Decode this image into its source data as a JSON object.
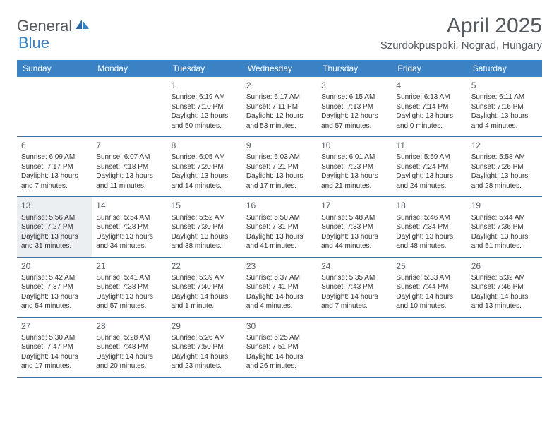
{
  "logo": {
    "text1": "General",
    "text2": "Blue"
  },
  "title": "April 2025",
  "location": "Szurdokpuspoki, Nograd, Hungary",
  "colors": {
    "header_bg": "#3b82c4",
    "header_text": "#ffffff",
    "border": "#3b6fa0",
    "logo_gray": "#555a5f",
    "logo_blue": "#3b82c4",
    "highlight_bg": "#eceff2",
    "body_text": "#333333"
  },
  "daysOfWeek": [
    "Sunday",
    "Monday",
    "Tuesday",
    "Wednesday",
    "Thursday",
    "Friday",
    "Saturday"
  ],
  "weeks": [
    [
      {
        "empty": true
      },
      {
        "empty": true
      },
      {
        "num": "1",
        "sunrise": "Sunrise: 6:19 AM",
        "sunset": "Sunset: 7:10 PM",
        "daylight": "Daylight: 12 hours and 50 minutes."
      },
      {
        "num": "2",
        "sunrise": "Sunrise: 6:17 AM",
        "sunset": "Sunset: 7:11 PM",
        "daylight": "Daylight: 12 hours and 53 minutes."
      },
      {
        "num": "3",
        "sunrise": "Sunrise: 6:15 AM",
        "sunset": "Sunset: 7:13 PM",
        "daylight": "Daylight: 12 hours and 57 minutes."
      },
      {
        "num": "4",
        "sunrise": "Sunrise: 6:13 AM",
        "sunset": "Sunset: 7:14 PM",
        "daylight": "Daylight: 13 hours and 0 minutes."
      },
      {
        "num": "5",
        "sunrise": "Sunrise: 6:11 AM",
        "sunset": "Sunset: 7:16 PM",
        "daylight": "Daylight: 13 hours and 4 minutes."
      }
    ],
    [
      {
        "num": "6",
        "sunrise": "Sunrise: 6:09 AM",
        "sunset": "Sunset: 7:17 PM",
        "daylight": "Daylight: 13 hours and 7 minutes."
      },
      {
        "num": "7",
        "sunrise": "Sunrise: 6:07 AM",
        "sunset": "Sunset: 7:18 PM",
        "daylight": "Daylight: 13 hours and 11 minutes."
      },
      {
        "num": "8",
        "sunrise": "Sunrise: 6:05 AM",
        "sunset": "Sunset: 7:20 PM",
        "daylight": "Daylight: 13 hours and 14 minutes."
      },
      {
        "num": "9",
        "sunrise": "Sunrise: 6:03 AM",
        "sunset": "Sunset: 7:21 PM",
        "daylight": "Daylight: 13 hours and 17 minutes."
      },
      {
        "num": "10",
        "sunrise": "Sunrise: 6:01 AM",
        "sunset": "Sunset: 7:23 PM",
        "daylight": "Daylight: 13 hours and 21 minutes."
      },
      {
        "num": "11",
        "sunrise": "Sunrise: 5:59 AM",
        "sunset": "Sunset: 7:24 PM",
        "daylight": "Daylight: 13 hours and 24 minutes."
      },
      {
        "num": "12",
        "sunrise": "Sunrise: 5:58 AM",
        "sunset": "Sunset: 7:26 PM",
        "daylight": "Daylight: 13 hours and 28 minutes."
      }
    ],
    [
      {
        "num": "13",
        "sunrise": "Sunrise: 5:56 AM",
        "sunset": "Sunset: 7:27 PM",
        "daylight": "Daylight: 13 hours and 31 minutes.",
        "highlight": true
      },
      {
        "num": "14",
        "sunrise": "Sunrise: 5:54 AM",
        "sunset": "Sunset: 7:28 PM",
        "daylight": "Daylight: 13 hours and 34 minutes."
      },
      {
        "num": "15",
        "sunrise": "Sunrise: 5:52 AM",
        "sunset": "Sunset: 7:30 PM",
        "daylight": "Daylight: 13 hours and 38 minutes."
      },
      {
        "num": "16",
        "sunrise": "Sunrise: 5:50 AM",
        "sunset": "Sunset: 7:31 PM",
        "daylight": "Daylight: 13 hours and 41 minutes."
      },
      {
        "num": "17",
        "sunrise": "Sunrise: 5:48 AM",
        "sunset": "Sunset: 7:33 PM",
        "daylight": "Daylight: 13 hours and 44 minutes."
      },
      {
        "num": "18",
        "sunrise": "Sunrise: 5:46 AM",
        "sunset": "Sunset: 7:34 PM",
        "daylight": "Daylight: 13 hours and 48 minutes."
      },
      {
        "num": "19",
        "sunrise": "Sunrise: 5:44 AM",
        "sunset": "Sunset: 7:36 PM",
        "daylight": "Daylight: 13 hours and 51 minutes."
      }
    ],
    [
      {
        "num": "20",
        "sunrise": "Sunrise: 5:42 AM",
        "sunset": "Sunset: 7:37 PM",
        "daylight": "Daylight: 13 hours and 54 minutes."
      },
      {
        "num": "21",
        "sunrise": "Sunrise: 5:41 AM",
        "sunset": "Sunset: 7:38 PM",
        "daylight": "Daylight: 13 hours and 57 minutes."
      },
      {
        "num": "22",
        "sunrise": "Sunrise: 5:39 AM",
        "sunset": "Sunset: 7:40 PM",
        "daylight": "Daylight: 14 hours and 1 minute."
      },
      {
        "num": "23",
        "sunrise": "Sunrise: 5:37 AM",
        "sunset": "Sunset: 7:41 PM",
        "daylight": "Daylight: 14 hours and 4 minutes."
      },
      {
        "num": "24",
        "sunrise": "Sunrise: 5:35 AM",
        "sunset": "Sunset: 7:43 PM",
        "daylight": "Daylight: 14 hours and 7 minutes."
      },
      {
        "num": "25",
        "sunrise": "Sunrise: 5:33 AM",
        "sunset": "Sunset: 7:44 PM",
        "daylight": "Daylight: 14 hours and 10 minutes."
      },
      {
        "num": "26",
        "sunrise": "Sunrise: 5:32 AM",
        "sunset": "Sunset: 7:46 PM",
        "daylight": "Daylight: 14 hours and 13 minutes."
      }
    ],
    [
      {
        "num": "27",
        "sunrise": "Sunrise: 5:30 AM",
        "sunset": "Sunset: 7:47 PM",
        "daylight": "Daylight: 14 hours and 17 minutes."
      },
      {
        "num": "28",
        "sunrise": "Sunrise: 5:28 AM",
        "sunset": "Sunset: 7:48 PM",
        "daylight": "Daylight: 14 hours and 20 minutes."
      },
      {
        "num": "29",
        "sunrise": "Sunrise: 5:26 AM",
        "sunset": "Sunset: 7:50 PM",
        "daylight": "Daylight: 14 hours and 23 minutes."
      },
      {
        "num": "30",
        "sunrise": "Sunrise: 5:25 AM",
        "sunset": "Sunset: 7:51 PM",
        "daylight": "Daylight: 14 hours and 26 minutes."
      },
      {
        "empty": true
      },
      {
        "empty": true
      },
      {
        "empty": true
      }
    ]
  ]
}
